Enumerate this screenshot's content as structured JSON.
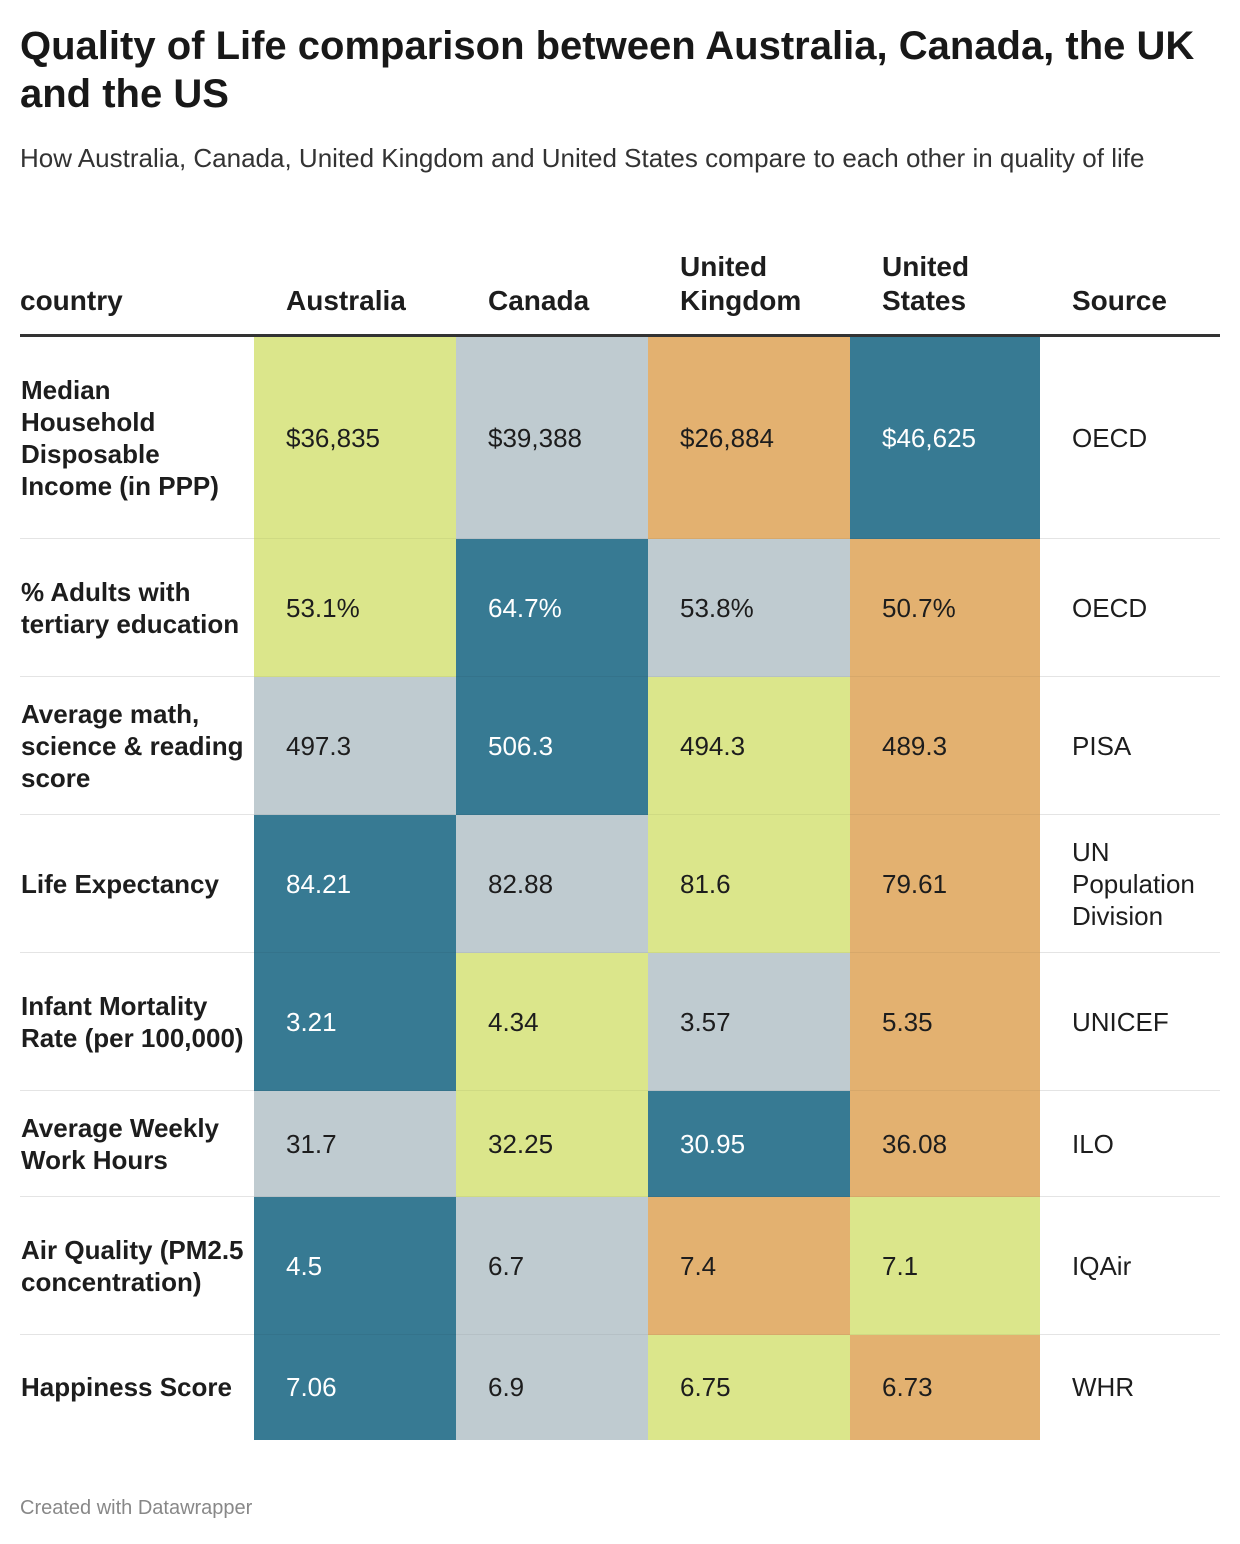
{
  "title": "Quality of Life comparison between Australia, Canada, the UK and the US",
  "subtitle": "How Australia, Canada, United Kingdom and United States compare to each other in quality of life",
  "footer": "Created with Datawrapper",
  "palette": {
    "teal": "#377a93",
    "gray": "#bfcbd0",
    "green": "#dbe68b",
    "orange": "#e3b170"
  },
  "chart_data": {
    "type": "table",
    "columns": [
      "country",
      "Australia",
      "Canada",
      "United Kingdom",
      "United States",
      "Source"
    ],
    "rows": [
      {
        "label": "Median Household Disposable Income (in PPP)",
        "values": [
          "$36,835",
          "$39,388",
          "$26,884",
          "$46,625"
        ],
        "colors": [
          "green",
          "gray",
          "orange",
          "teal"
        ],
        "source": "OECD"
      },
      {
        "label": "% Adults with tertiary education",
        "values": [
          "53.1%",
          "64.7%",
          "53.8%",
          "50.7%"
        ],
        "colors": [
          "green",
          "teal",
          "gray",
          "orange"
        ],
        "source": "OECD"
      },
      {
        "label": "Average math, science & reading score",
        "values": [
          "497.3",
          "506.3",
          "494.3",
          "489.3"
        ],
        "colors": [
          "gray",
          "teal",
          "green",
          "orange"
        ],
        "source": "PISA"
      },
      {
        "label": "Life Expectancy",
        "values": [
          "84.21",
          "82.88",
          "81.6",
          "79.61"
        ],
        "colors": [
          "teal",
          "gray",
          "green",
          "orange"
        ],
        "source": "UN Population Division"
      },
      {
        "label": "Infant Mortality Rate (per 100,000)",
        "values": [
          "3.21",
          "4.34",
          "3.57",
          "5.35"
        ],
        "colors": [
          "teal",
          "green",
          "gray",
          "orange"
        ],
        "source": "UNICEF"
      },
      {
        "label": "Average Weekly Work Hours",
        "values": [
          "31.7",
          "32.25",
          "30.95",
          "36.08"
        ],
        "colors": [
          "gray",
          "green",
          "teal",
          "orange"
        ],
        "source": "ILO"
      },
      {
        "label": "Air Quality (PM2.5 concentration)",
        "values": [
          "4.5",
          "6.7",
          "7.4",
          "7.1"
        ],
        "colors": [
          "teal",
          "gray",
          "orange",
          "green"
        ],
        "source": "IQAir"
      },
      {
        "label": "Happiness Score",
        "values": [
          "7.06",
          "6.9",
          "6.75",
          "6.73"
        ],
        "colors": [
          "teal",
          "gray",
          "green",
          "orange"
        ],
        "source": "WHR"
      }
    ]
  }
}
